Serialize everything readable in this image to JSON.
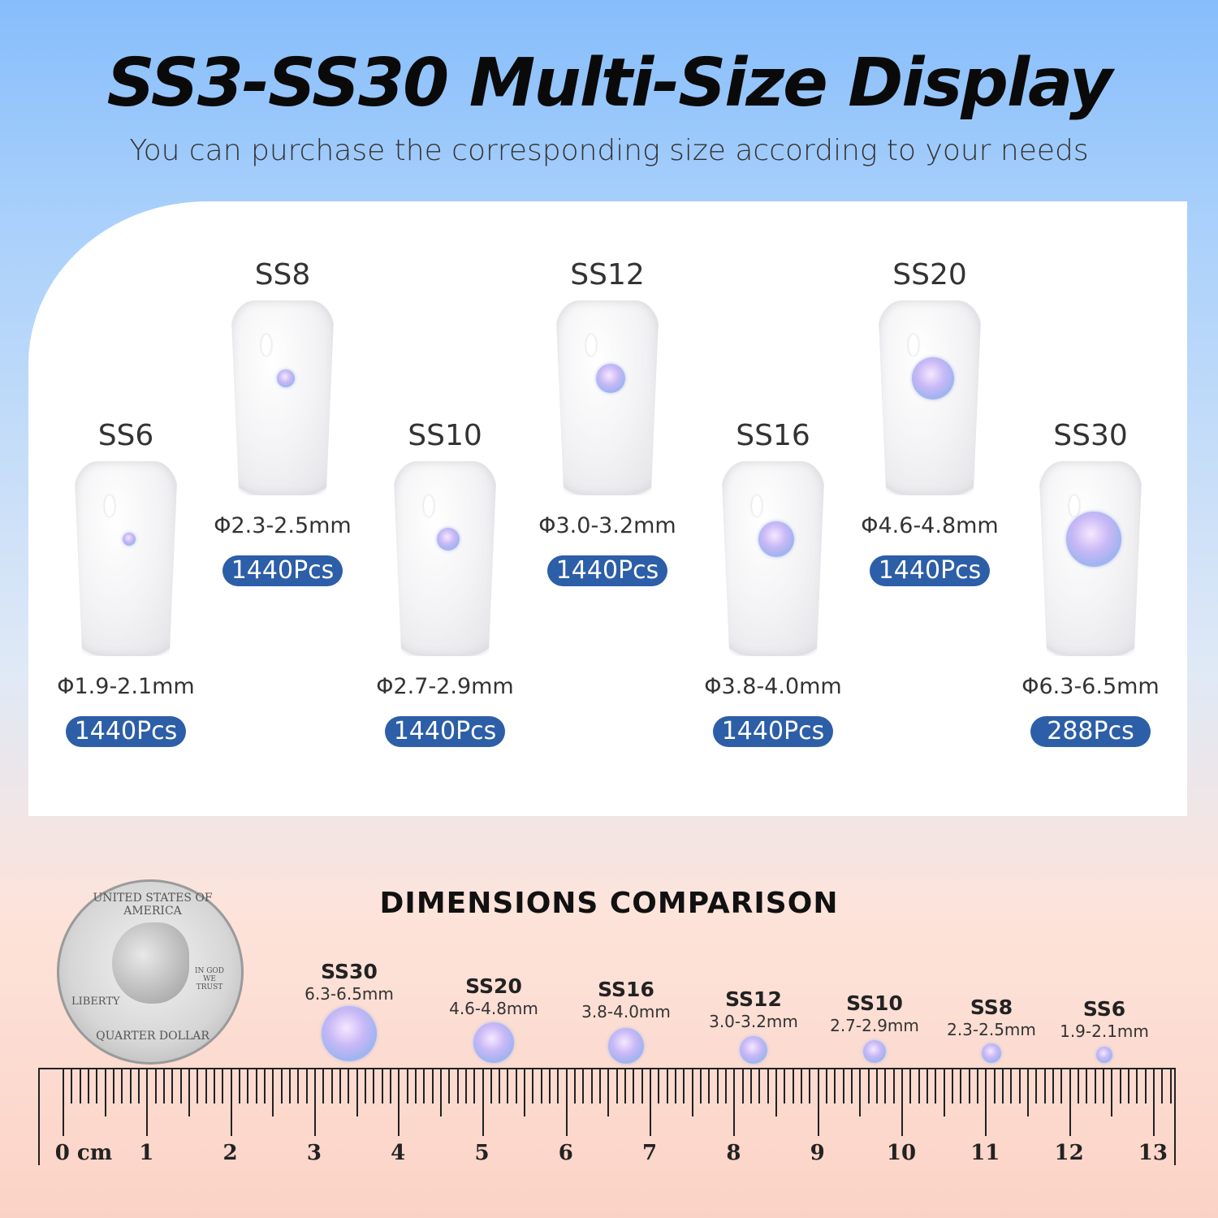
{
  "header": {
    "title": "SS3-SS30 Multi-Size Display",
    "subtitle": "You can purchase the corresponding size according to your needs"
  },
  "nails": [
    {
      "size": "SS6",
      "diameter": "Φ1.9-2.1mm",
      "count": "1440Pcs"
    },
    {
      "size": "SS8",
      "diameter": "Φ2.3-2.5mm",
      "count": "1440Pcs"
    },
    {
      "size": "SS10",
      "diameter": "Φ2.7-2.9mm",
      "count": "1440Pcs"
    },
    {
      "size": "SS12",
      "diameter": "Φ3.0-3.2mm",
      "count": "1440Pcs"
    },
    {
      "size": "SS16",
      "diameter": "Φ3.8-4.0mm",
      "count": "1440Pcs"
    },
    {
      "size": "SS20",
      "diameter": "Φ4.6-4.8mm",
      "count": "1440Pcs"
    },
    {
      "size": "SS30",
      "diameter": "Φ6.3-6.5mm",
      "count": "288Pcs"
    }
  ],
  "comparison": {
    "title": "DIMENSIONS COMPARISON",
    "items": [
      {
        "size": "SS30",
        "diameter": "6.3-6.5mm"
      },
      {
        "size": "SS20",
        "diameter": "4.6-4.8mm"
      },
      {
        "size": "SS16",
        "diameter": "3.8-4.0mm"
      },
      {
        "size": "SS12",
        "diameter": "3.0-3.2mm"
      },
      {
        "size": "SS10",
        "diameter": "2.7-2.9mm"
      },
      {
        "size": "SS8",
        "diameter": "2.3-2.5mm"
      },
      {
        "size": "SS6",
        "diameter": "1.9-2.1mm"
      }
    ],
    "coin": {
      "top": "UNITED STATES OF AMERICA",
      "left": "LIBERTY",
      "motto": "IN GOD WE TRUST",
      "bottom": "QUARTER DOLLAR"
    },
    "ruler_labels": [
      "0 cm",
      "1",
      "2",
      "3",
      "4",
      "5",
      "6",
      "7",
      "8",
      "9",
      "10",
      "11",
      "12",
      "13"
    ]
  },
  "colors": {
    "badge": "#2d5ea8",
    "top_bg": "#86bdfb",
    "bottom_bg": "#fbd3c6"
  }
}
